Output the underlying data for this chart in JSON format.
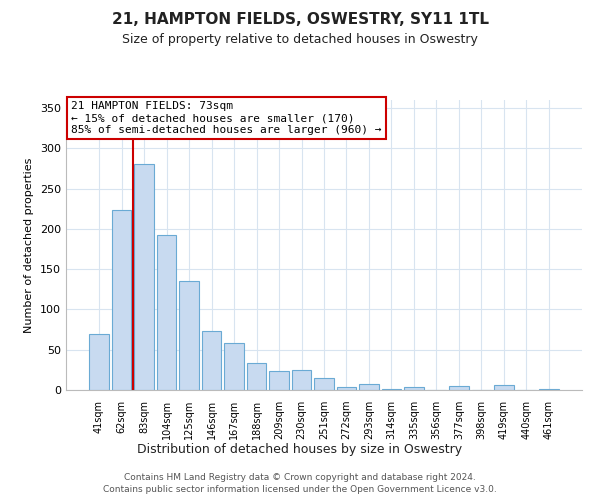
{
  "title": "21, HAMPTON FIELDS, OSWESTRY, SY11 1TL",
  "subtitle": "Size of property relative to detached houses in Oswestry",
  "xlabel": "Distribution of detached houses by size in Oswestry",
  "ylabel": "Number of detached properties",
  "bar_labels": [
    "41sqm",
    "62sqm",
    "83sqm",
    "104sqm",
    "125sqm",
    "146sqm",
    "167sqm",
    "188sqm",
    "209sqm",
    "230sqm",
    "251sqm",
    "272sqm",
    "293sqm",
    "314sqm",
    "335sqm",
    "356sqm",
    "377sqm",
    "398sqm",
    "419sqm",
    "440sqm",
    "461sqm"
  ],
  "bar_values": [
    70,
    224,
    280,
    193,
    135,
    73,
    58,
    34,
    23,
    25,
    15,
    4,
    7,
    1,
    4,
    0,
    5,
    0,
    6,
    0,
    1
  ],
  "bar_color": "#c8daf0",
  "bar_edge_color": "#6aaad4",
  "vline_color": "#cc0000",
  "annotation_text": "21 HAMPTON FIELDS: 73sqm\n← 15% of detached houses are smaller (170)\n85% of semi-detached houses are larger (960) →",
  "annotation_box_color": "#ffffff",
  "annotation_box_edge_color": "#cc0000",
  "ylim": [
    0,
    360
  ],
  "yticks": [
    0,
    50,
    100,
    150,
    200,
    250,
    300,
    350
  ],
  "footer_line1": "Contains HM Land Registry data © Crown copyright and database right 2024.",
  "footer_line2": "Contains public sector information licensed under the Open Government Licence v3.0.",
  "bg_color": "#ffffff",
  "grid_color": "#d8e4f0"
}
